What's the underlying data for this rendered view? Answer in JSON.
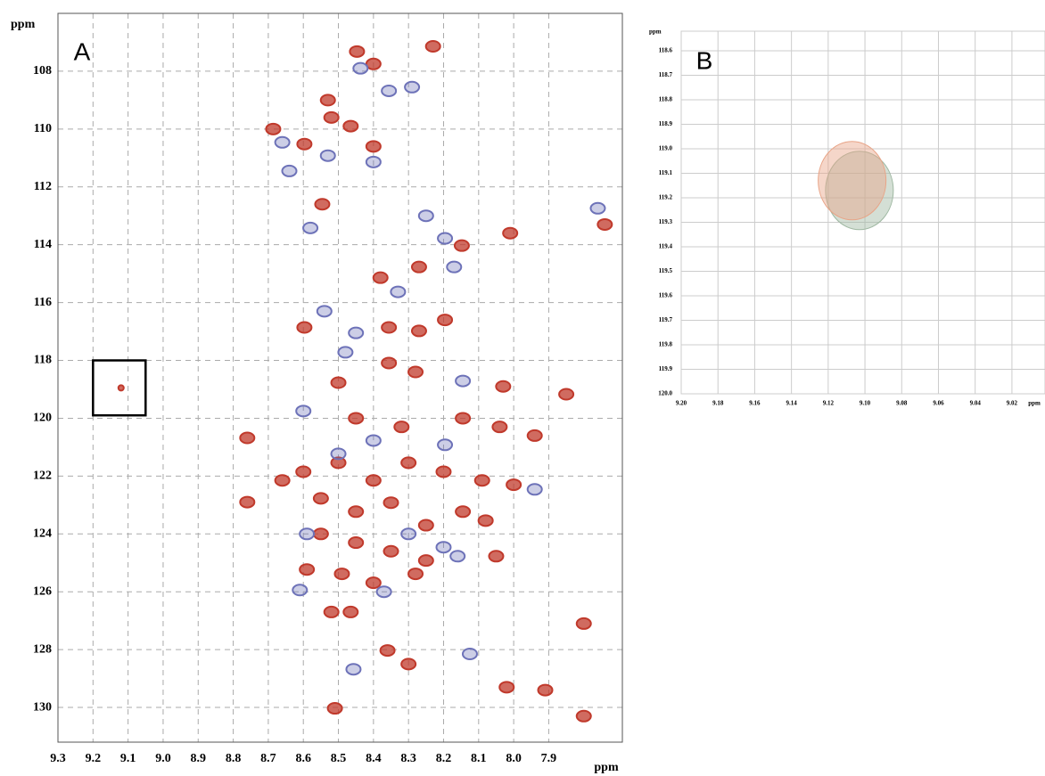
{
  "chart_data": [
    {
      "type": "scatter",
      "annotation": "A",
      "x_label": "ppm",
      "y_label": "ppm",
      "xlim": [
        9.3,
        7.69
      ],
      "ylim": [
        131.2,
        106
      ],
      "xticks": [
        9.3,
        9.2,
        9.1,
        {
          "value": 9,
          "label": "9.0"
        },
        8.9,
        8.8,
        8.7,
        8.6,
        8.5,
        8.4,
        8.3,
        8.2,
        8.1,
        {
          "value": 8,
          "label": "8.0"
        },
        7.9
      ],
      "yticks": [
        108,
        110,
        112,
        114,
        116,
        118,
        120,
        122,
        124,
        126,
        128,
        130
      ],
      "grid": true,
      "grid_style": "dashed",
      "highlight_box": {
        "x": [
          9.2,
          9.05
        ],
        "y": [
          118,
          119.9
        ]
      },
      "series": [
        {
          "color": "#c0392b",
          "x": [
            8.447,
            8.23,
            8.4,
            8.686,
            8.53,
            8.52,
            8.465,
            8.597,
            8.4,
            8.546,
            8.01,
            8.148,
            8.27,
            8.38,
            8.597,
            8.356,
            8.27,
            8.196,
            8.356,
            8.28,
            8.5,
            8.03,
            7.85,
            8.45,
            8.32,
            8.145,
            8.04,
            7.94,
            8.6,
            8.5,
            8.4,
            8.3,
            8.2,
            8.09,
            8.0,
            8.66,
            8.76,
            8.55,
            8.45,
            8.35,
            8.25,
            8.145,
            8.08,
            8.55,
            8.45,
            8.35,
            8.25,
            8.05,
            8.59,
            8.49,
            8.4,
            8.28,
            8.52,
            8.465,
            8.3,
            8.36,
            8.51,
            8.02,
            7.91,
            7.8,
            7.8,
            9.12,
            8.76,
            7.74
          ],
          "values": [
            107.32,
            107.14,
            107.75,
            110.0,
            109.0,
            109.6,
            109.9,
            110.52,
            110.6,
            112.6,
            113.6,
            114.03,
            114.77,
            115.14,
            116.86,
            116.86,
            116.98,
            116.6,
            118.09,
            118.4,
            118.77,
            118.9,
            119.17,
            120.0,
            120.3,
            120.0,
            120.3,
            120.6,
            121.85,
            121.54,
            122.15,
            121.54,
            121.85,
            122.15,
            122.3,
            122.15,
            122.9,
            122.77,
            123.23,
            122.92,
            123.7,
            123.23,
            123.54,
            124.0,
            124.3,
            124.6,
            124.92,
            124.77,
            125.23,
            125.38,
            125.69,
            125.38,
            126.7,
            126.7,
            128.5,
            128.03,
            130.03,
            129.3,
            129.4,
            127.1,
            130.3,
            118.95,
            120.68,
            113.3
          ]
        },
        {
          "color": "#6d72b8",
          "x": [
            8.437,
            8.356,
            8.29,
            8.66,
            8.64,
            8.53,
            8.4,
            8.58,
            8.25,
            8.196,
            8.17,
            8.33,
            8.54,
            8.45,
            8.48,
            8.145,
            8.6,
            8.4,
            8.5,
            8.196,
            7.94,
            8.59,
            8.3,
            8.2,
            8.16,
            8.61,
            8.37,
            8.125,
            8.457,
            7.76
          ],
          "values": [
            107.9,
            108.68,
            108.55,
            110.46,
            111.45,
            110.92,
            111.14,
            113.42,
            113.0,
            113.78,
            114.77,
            115.63,
            116.3,
            117.05,
            117.72,
            118.71,
            119.75,
            120.77,
            121.23,
            120.92,
            122.46,
            124.0,
            124.0,
            124.46,
            124.77,
            125.94,
            126.0,
            128.15,
            128.68,
            112.74
          ]
        }
      ]
    },
    {
      "type": "scatter",
      "annotation": "B",
      "x_label": "ppm",
      "y_label": "ppm",
      "xlim": [
        9.2,
        9.002
      ],
      "ylim": [
        120.0,
        118.52
      ],
      "xticks": [
        {
          "value": 9.2,
          "label": "9.20"
        },
        9.18,
        9.16,
        9.14,
        9.12,
        {
          "value": 9.1,
          "label": "9.10"
        },
        9.08,
        9.06,
        9.04,
        9.02
      ],
      "yticks": [
        118.6,
        118.7,
        118.8,
        118.9,
        {
          "value": 119,
          "label": "119.0"
        },
        119.1,
        119.2,
        119.3,
        119.4,
        119.5,
        119.6,
        119.7,
        119.8,
        119.9,
        {
          "value": 120,
          "label": "120.0"
        }
      ],
      "grid": true,
      "grid_style": "solid",
      "series": [
        {
          "color": "#9fb8a2",
          "x": [
            9.103
          ],
          "values": [
            119.17
          ]
        },
        {
          "color": "#e8a487",
          "x": [
            9.107
          ],
          "values": [
            119.13
          ]
        }
      ]
    }
  ]
}
